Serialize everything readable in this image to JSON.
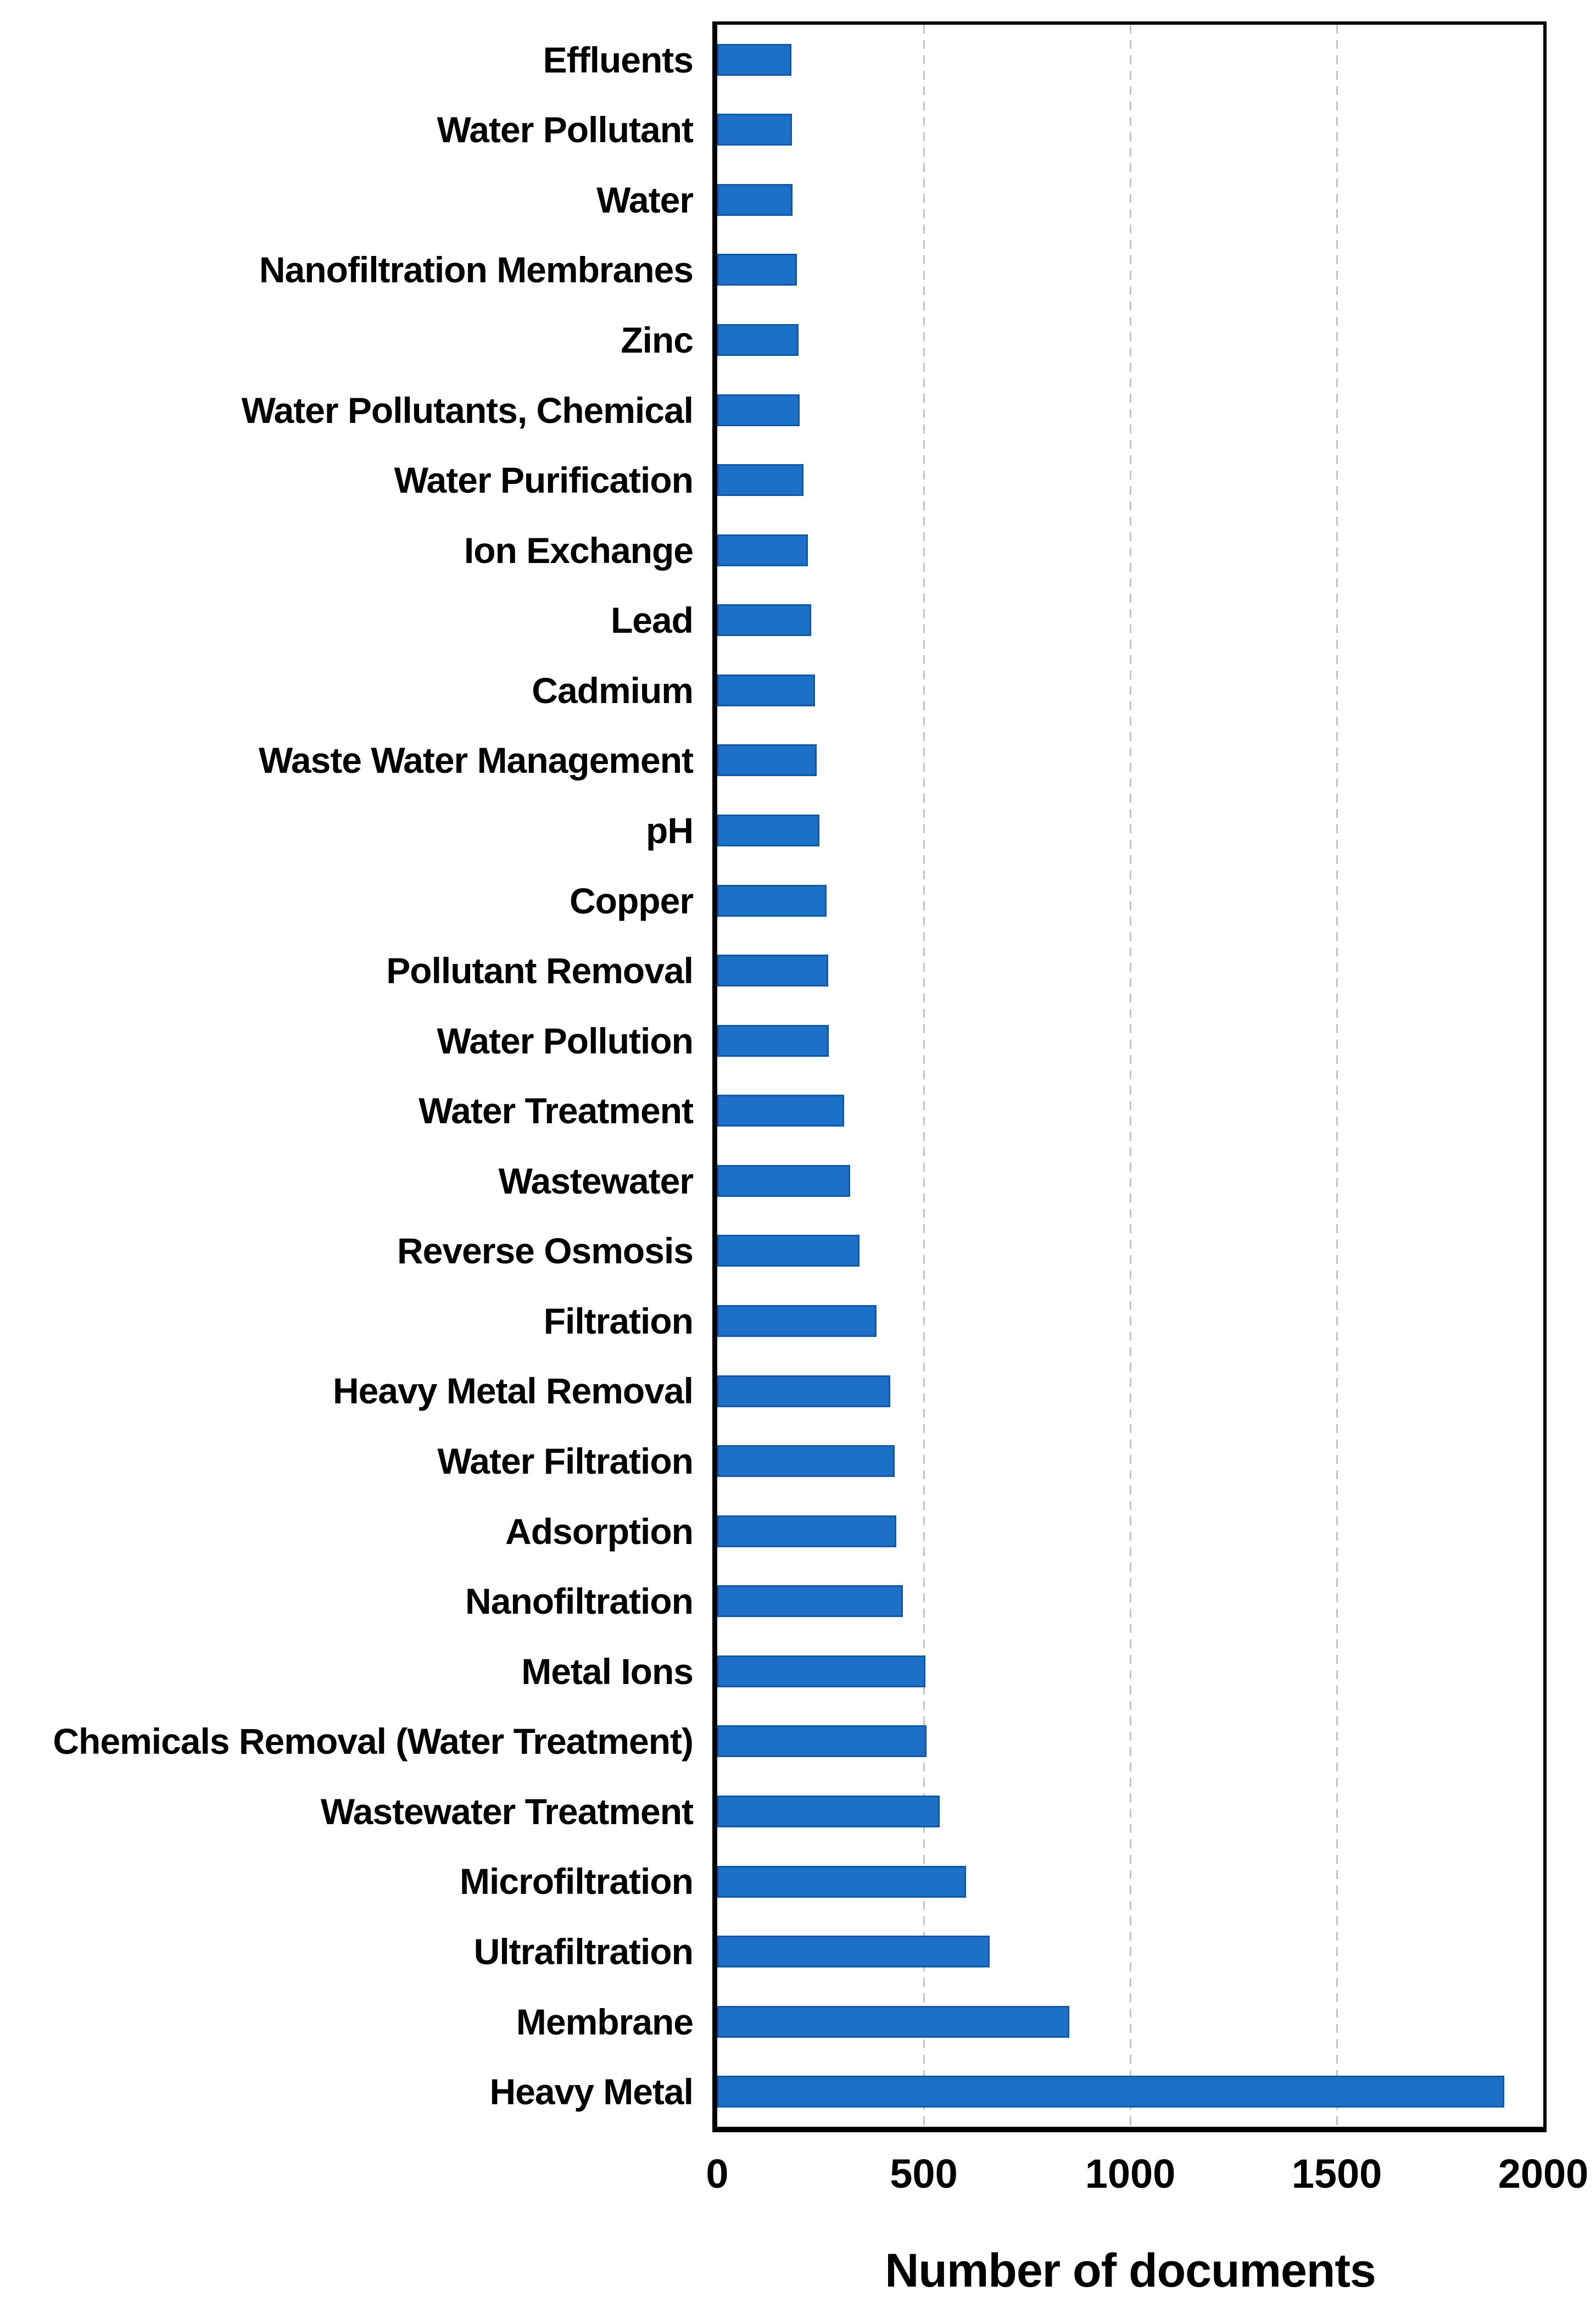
{
  "chart_data": {
    "type": "bar",
    "orientation": "horizontal",
    "title": "",
    "xlabel": "Number of documents",
    "ylabel": "",
    "xlim": [
      0,
      2000
    ],
    "x_ticks": [
      0,
      500,
      1000,
      1500,
      2000
    ],
    "grid": "vertical dashed gridlines at 500, 1000, 1500",
    "legend": "none",
    "bar_color": "#1C70C8",
    "bar_border_color": "#1259A5",
    "gridline_color": "#C3C3C3",
    "frame_color": "#000000",
    "categories": [
      "Effluents",
      "Water Pollutant",
      "Water",
      "Nanofiltration Membranes",
      "Zinc",
      "Water Pollutants, Chemical",
      "Water Purification",
      "Ion Exchange",
      "Lead",
      "Cadmium",
      "Waste Water Management",
      "pH",
      "Copper",
      "Pollutant Removal",
      "Water Pollution",
      "Water Treatment",
      "Wastewater",
      "Reverse Osmosis",
      "Filtration",
      "Heavy Metal Removal",
      "Water Filtration",
      "Adsorption",
      "Nanofiltration",
      "Metal Ions",
      "Chemicals Removal (Water Treatment)",
      "Wastewater Treatment",
      "Microfiltration",
      "Ultrafiltration",
      "Membrane",
      "Heavy Metal"
    ],
    "values": [
      180,
      181,
      182,
      193,
      197,
      199,
      209,
      220,
      228,
      237,
      241,
      247,
      265,
      268,
      270,
      307,
      322,
      344,
      386,
      419,
      429,
      434,
      449,
      504,
      507,
      539,
      602,
      660,
      853,
      1905
    ]
  }
}
